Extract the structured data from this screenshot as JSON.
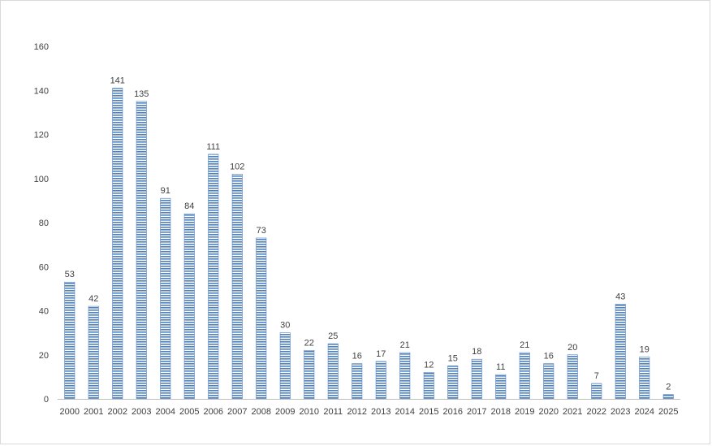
{
  "chart_data": {
    "type": "bar",
    "title": "",
    "xlabel": "",
    "ylabel": "",
    "categories": [
      "2000",
      "2001",
      "2002",
      "2003",
      "2004",
      "2005",
      "2006",
      "2007",
      "2008",
      "2009",
      "2010",
      "2011",
      "2012",
      "2013",
      "2014",
      "2015",
      "2016",
      "2017",
      "2018",
      "2019",
      "2020",
      "2021",
      "2022",
      "2023",
      "2024",
      "2025"
    ],
    "values": [
      53,
      42,
      141,
      135,
      91,
      84,
      111,
      102,
      73,
      30,
      22,
      25,
      16,
      17,
      21,
      12,
      15,
      18,
      11,
      21,
      16,
      20,
      7,
      43,
      19,
      2
    ],
    "ylim": [
      0,
      160
    ],
    "yticks": [
      0,
      20,
      40,
      60,
      80,
      100,
      120,
      140,
      160
    ],
    "grid": false,
    "legend": "none",
    "data_labels": true,
    "bar_color": "#4f81bd",
    "bar_pattern": "horizontal-stripes"
  }
}
